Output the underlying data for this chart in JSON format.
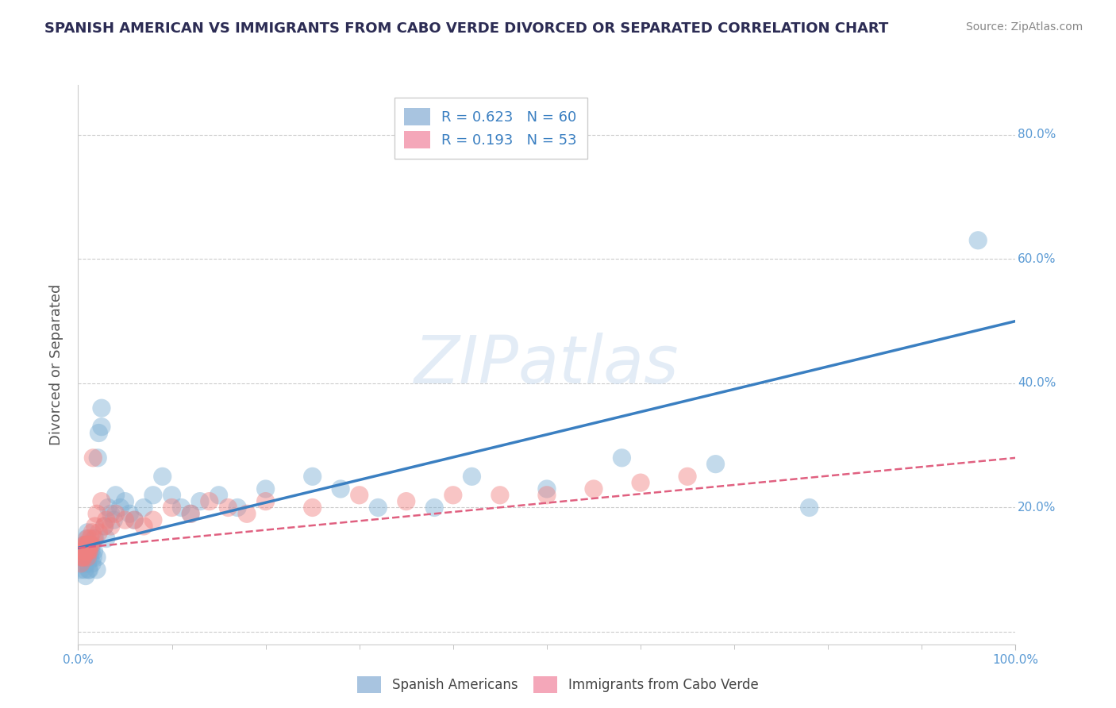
{
  "title": "SPANISH AMERICAN VS IMMIGRANTS FROM CABO VERDE DIVORCED OR SEPARATED CORRELATION CHART",
  "source": "Source: ZipAtlas.com",
  "ylabel": "Divorced or Separated",
  "watermark": "ZIPatlas",
  "xlim": [
    0,
    1.0
  ],
  "ylim": [
    -0.02,
    0.88
  ],
  "yticks": [
    0.0,
    0.2,
    0.4,
    0.6,
    0.8
  ],
  "ytick_labels": [
    "",
    "20.0%",
    "40.0%",
    "60.0%",
    "80.0%"
  ],
  "xtick_labels": [
    "0.0%",
    "100.0%"
  ],
  "legend_entries": [
    {
      "label": "R = 0.623   N = 60",
      "color": "#a8c4e0"
    },
    {
      "label": "R = 0.193   N = 53",
      "color": "#f4a7b9"
    }
  ],
  "series1_label": "Spanish Americans",
  "series2_label": "Immigrants from Cabo Verde",
  "series1_color": "#7bafd4",
  "series2_color": "#f08080",
  "trendline1_color": "#3a7fc1",
  "trendline2_color": "#e06080",
  "blue_scatter_x": [
    0.003,
    0.005,
    0.006,
    0.007,
    0.008,
    0.008,
    0.009,
    0.009,
    0.01,
    0.01,
    0.01,
    0.01,
    0.011,
    0.011,
    0.012,
    0.012,
    0.013,
    0.013,
    0.014,
    0.015,
    0.015,
    0.016,
    0.017,
    0.018,
    0.02,
    0.02,
    0.021,
    0.022,
    0.025,
    0.025,
    0.028,
    0.03,
    0.032,
    0.035,
    0.038,
    0.04,
    0.045,
    0.05,
    0.055,
    0.06,
    0.07,
    0.08,
    0.09,
    0.1,
    0.11,
    0.12,
    0.13,
    0.15,
    0.17,
    0.2,
    0.25,
    0.28,
    0.32,
    0.38,
    0.42,
    0.5,
    0.58,
    0.68,
    0.78,
    0.96
  ],
  "blue_scatter_y": [
    0.1,
    0.12,
    0.14,
    0.1,
    0.09,
    0.11,
    0.12,
    0.15,
    0.11,
    0.13,
    0.14,
    0.16,
    0.1,
    0.12,
    0.1,
    0.13,
    0.12,
    0.14,
    0.13,
    0.11,
    0.14,
    0.12,
    0.13,
    0.15,
    0.1,
    0.12,
    0.28,
    0.32,
    0.33,
    0.36,
    0.17,
    0.15,
    0.2,
    0.19,
    0.18,
    0.22,
    0.2,
    0.21,
    0.19,
    0.18,
    0.2,
    0.22,
    0.25,
    0.22,
    0.2,
    0.19,
    0.21,
    0.22,
    0.2,
    0.23,
    0.25,
    0.23,
    0.2,
    0.2,
    0.25,
    0.23,
    0.28,
    0.27,
    0.2,
    0.63
  ],
  "pink_scatter_x": [
    0.003,
    0.004,
    0.005,
    0.005,
    0.006,
    0.006,
    0.007,
    0.007,
    0.008,
    0.008,
    0.009,
    0.009,
    0.01,
    0.01,
    0.01,
    0.01,
    0.011,
    0.011,
    0.012,
    0.012,
    0.013,
    0.013,
    0.014,
    0.015,
    0.016,
    0.017,
    0.018,
    0.02,
    0.022,
    0.025,
    0.028,
    0.03,
    0.035,
    0.04,
    0.05,
    0.06,
    0.07,
    0.08,
    0.1,
    0.12,
    0.14,
    0.16,
    0.18,
    0.2,
    0.25,
    0.3,
    0.35,
    0.4,
    0.45,
    0.5,
    0.55,
    0.6,
    0.65
  ],
  "pink_scatter_y": [
    0.11,
    0.12,
    0.12,
    0.13,
    0.12,
    0.13,
    0.13,
    0.14,
    0.13,
    0.14,
    0.13,
    0.14,
    0.12,
    0.13,
    0.14,
    0.15,
    0.13,
    0.14,
    0.13,
    0.14,
    0.14,
    0.15,
    0.14,
    0.16,
    0.28,
    0.15,
    0.17,
    0.19,
    0.16,
    0.21,
    0.17,
    0.18,
    0.17,
    0.19,
    0.18,
    0.18,
    0.17,
    0.18,
    0.2,
    0.19,
    0.21,
    0.2,
    0.19,
    0.21,
    0.2,
    0.22,
    0.21,
    0.22,
    0.22,
    0.22,
    0.23,
    0.24,
    0.25
  ],
  "trendline1_x": [
    0.0,
    1.0
  ],
  "trendline1_y": [
    0.135,
    0.5
  ],
  "trendline2_x": [
    0.0,
    1.0
  ],
  "trendline2_y": [
    0.135,
    0.28
  ],
  "background_color": "#ffffff",
  "grid_color": "#cccccc",
  "title_color": "#2c2c54",
  "axis_label_color": "#555555",
  "tick_label_color": "#5a9ad4",
  "source_color": "#888888"
}
